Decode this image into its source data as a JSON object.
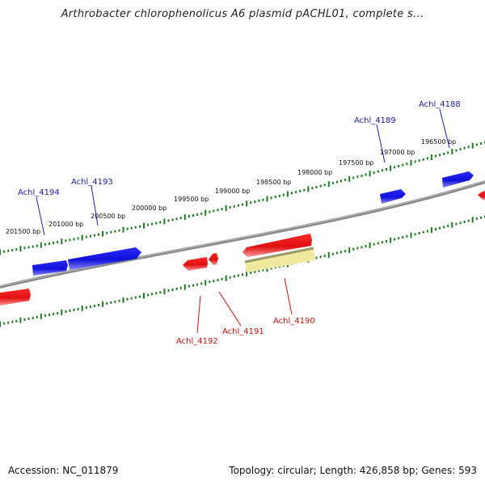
{
  "title": "Arthrobacter chlorophenolicus A6 plasmid pACHL01, complete s...",
  "footer": {
    "accession": "Accession: NC_011879",
    "summary": "Topology: circular; Length: 426,858 bp; Genes: 593"
  },
  "colors": {
    "forward_gene": "#1a1aee",
    "reverse_gene": "#ee1111",
    "forward_label": "#1a1ab0",
    "reverse_label": "#cc1111",
    "highlight": "#f2e9a0",
    "backbone": "#858585",
    "ruler": "#1e7a1e"
  },
  "ruler_labels": [
    "201500 bp",
    "201000 bp",
    "200500 bp",
    "200000 bp",
    "199500 bp",
    "199000 bp",
    "198500 bp",
    "198000 bp",
    "197500 bp",
    "197000 bp",
    "196500 bp"
  ],
  "forward_labels": [
    "Achl_4194",
    "Achl_4193",
    "Achl_4189",
    "Achl_4188"
  ],
  "reverse_labels": [
    "Achl_4192",
    "Achl_4191",
    "Achl_4190"
  ]
}
